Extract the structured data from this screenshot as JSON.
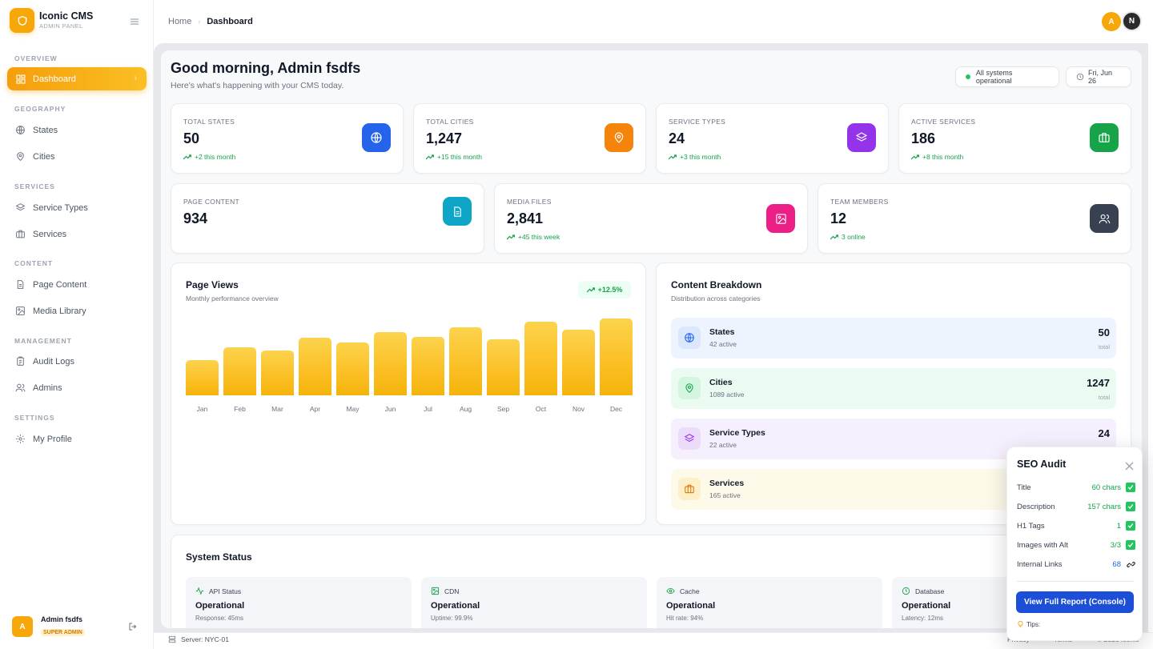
{
  "brand": {
    "title": "Iconic CMS",
    "subtitle": "ADMIN PANEL"
  },
  "sidebar": {
    "sections": [
      "OVERVIEW",
      "GEOGRAPHY",
      "SERVICES",
      "CONTENT",
      "MANAGEMENT",
      "SETTINGS"
    ],
    "items": [
      {
        "label": "Dashboard",
        "icon": "dashboard-icon",
        "active": true
      },
      {
        "label": "States",
        "icon": "globe-icon"
      },
      {
        "label": "Cities",
        "icon": "map-pin-icon"
      },
      {
        "label": "Service Types",
        "icon": "layers-icon"
      },
      {
        "label": "Services",
        "icon": "briefcase-icon"
      },
      {
        "label": "Page Content",
        "icon": "document-icon"
      },
      {
        "label": "Media Library",
        "icon": "image-icon"
      },
      {
        "label": "Audit Logs",
        "icon": "clipboard-icon"
      },
      {
        "label": "Admins",
        "icon": "users-icon"
      },
      {
        "label": "My Profile",
        "icon": "gear-icon"
      }
    ],
    "user": {
      "initial": "A",
      "name": "Admin fsdfs",
      "role": "SUPER ADMIN"
    }
  },
  "topbar": {
    "breadcrumb": {
      "home": "Home",
      "current": "Dashboard"
    },
    "avatars": [
      "A",
      "N"
    ]
  },
  "header": {
    "title": "Good morning, Admin fsdfs",
    "subtitle": "Here's what's happening with your CMS today.",
    "status": "All systems operational",
    "date": "Fri, Jun 26"
  },
  "stats": [
    {
      "label": "TOTAL STATES",
      "value": "50",
      "trend": "+2 this month",
      "color": "#2563eb"
    },
    {
      "label": "TOTAL CITIES",
      "value": "1,247",
      "trend": "+15 this month",
      "color": "#f97316"
    },
    {
      "label": "SERVICE TYPES",
      "value": "24",
      "trend": "+3 this month",
      "color": "#9333ea"
    },
    {
      "label": "ACTIVE SERVICES",
      "value": "186",
      "trend": "+8 this month",
      "color": "#16a34a"
    },
    {
      "label": "PAGE CONTENT",
      "value": "934",
      "trend": "",
      "color": "#0891b2"
    },
    {
      "label": "MEDIA FILES",
      "value": "2,841",
      "trend": "+45 this week",
      "color": "#db2777"
    },
    {
      "label": "TEAM MEMBERS",
      "value": "12",
      "trend": "3 online",
      "color": "#374151"
    }
  ],
  "page_views": {
    "title": "Page Views",
    "subtitle": "Monthly performance overview",
    "change": "+12.5%"
  },
  "chart_data": {
    "type": "bar",
    "title": "Page Views",
    "categories": [
      "Jan",
      "Feb",
      "Mar",
      "Apr",
      "May",
      "Jun",
      "Jul",
      "Aug",
      "Sep",
      "Oct",
      "Nov",
      "Dec"
    ],
    "values": [
      44,
      60,
      56,
      72,
      66,
      79,
      73,
      85,
      70,
      92,
      82,
      96
    ],
    "ylim": [
      0,
      100
    ]
  },
  "content_breakdown": {
    "title": "Content Breakdown",
    "subtitle": "Distribution across categories",
    "items": [
      {
        "name": "States",
        "active": "42 active",
        "value": "50",
        "total": "total",
        "bg": "#eef4fe",
        "color": "#2563eb",
        "icon": "globe-icon"
      },
      {
        "name": "Cities",
        "active": "1089 active",
        "value": "1247",
        "total": "total",
        "bg": "#ecfbf1",
        "color": "#16a34a",
        "icon": "map-pin-icon"
      },
      {
        "name": "Service Types",
        "active": "22 active",
        "value": "24",
        "total": "",
        "bg": "#f6effd",
        "color": "#9333ea",
        "icon": "layers-icon"
      },
      {
        "name": "Services",
        "active": "165 active",
        "value": "",
        "total": "",
        "bg": "#fefaea",
        "color": "#d97706",
        "icon": "briefcase-icon"
      }
    ]
  },
  "system_status": {
    "title": "System Status",
    "items": [
      {
        "name": "API Status",
        "status": "Operational",
        "meta": "Response: 45ms",
        "icon": "activity-icon"
      },
      {
        "name": "CDN",
        "status": "Operational",
        "meta": "Uptime: 99.9%",
        "icon": "cdn-icon"
      },
      {
        "name": "Cache",
        "status": "Operational",
        "meta": "Hit rate: 94%",
        "icon": "eye-icon"
      },
      {
        "name": "Database",
        "status": "Operational",
        "meta": "Latency: 12ms",
        "icon": "clock-icon"
      }
    ]
  },
  "footer": {
    "server": "Server: NYC-01",
    "links": [
      "Privacy",
      "Terms",
      "© 2026 Iconic"
    ]
  },
  "seo_audit": {
    "title": "SEO Audit",
    "rows": [
      {
        "label": "Title",
        "value": "60 chars",
        "status": "pass"
      },
      {
        "label": "Description",
        "value": "157 chars",
        "status": "pass"
      },
      {
        "label": "H1 Tags",
        "value": "1",
        "status": "pass"
      },
      {
        "label": "Images with Alt",
        "value": "3/3",
        "status": "pass"
      },
      {
        "label": "Internal Links",
        "value": "68",
        "status": "info"
      }
    ],
    "button": "View Full Report (Console)",
    "tips": "Tips:"
  }
}
